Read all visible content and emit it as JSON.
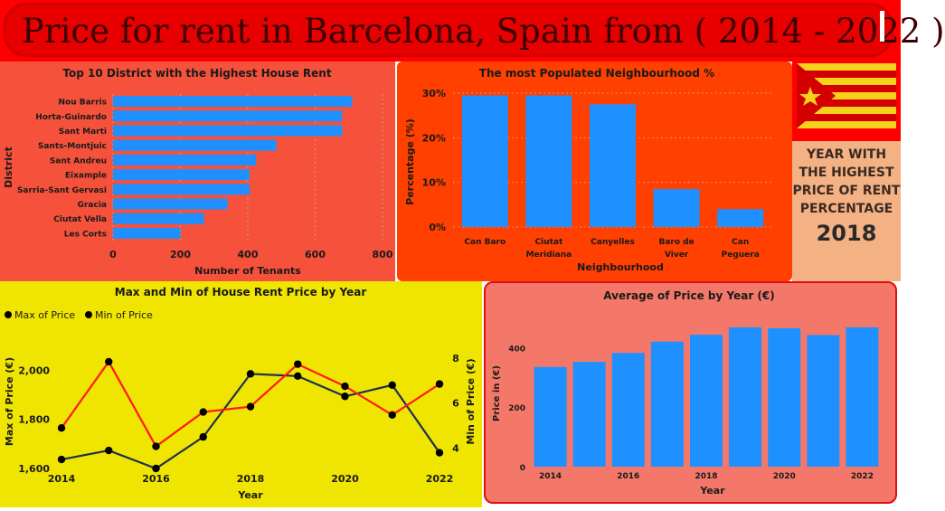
{
  "title": "Price for rent in Barcelona, Spain from ( 2014 - 2022 )",
  "colors": {
    "bar": "#1e90ff",
    "max_line": "#ff1a1a",
    "min_line": "#1f3050",
    "marker": "#000000"
  },
  "kpi_card": {
    "lines": [
      "YEAR WITH",
      "THE HIGHEST",
      "PRICE OF  RENT",
      "PERCENTAGE"
    ],
    "value": "2018"
  },
  "flag_icon": "estelada-flag-icon",
  "chart_data": [
    {
      "id": "district",
      "type": "bar",
      "orientation": "horizontal",
      "title": "Top 10 District with the Highest House Rent",
      "xlabel": "Number of Tenants",
      "ylabel": "District",
      "categories": [
        "Nou Barris",
        "Horta-Guinardo",
        "Sant Marti",
        "Sants-Montjuic",
        "Sant Andreu",
        "Eixample",
        "Sarria-Sant Gervasi",
        "Gracia",
        "Ciutat Vella",
        "Les Corts"
      ],
      "values": [
        710,
        680,
        680,
        485,
        425,
        405,
        405,
        340,
        270,
        200
      ],
      "xlim": [
        0,
        800
      ],
      "xticks": [
        "0",
        "200",
        "400",
        "600",
        "800"
      ],
      "grid": true
    },
    {
      "id": "neighbourhood",
      "type": "bar",
      "title": "The most Populated Neighbourhood %",
      "xlabel": "Neighbourhood",
      "ylabel": "Percentage (%)",
      "categories": [
        [
          "Can Baro"
        ],
        [
          "Ciutat",
          "Meridiana"
        ],
        [
          "Canyelles"
        ],
        [
          "Baro de",
          "Viver"
        ],
        [
          "Can",
          "Peguera"
        ]
      ],
      "values": [
        29.5,
        29.5,
        27.5,
        8.5,
        4
      ],
      "ylim": [
        0,
        30
      ],
      "yticks": [
        "0%",
        "10%",
        "20%",
        "30%"
      ],
      "grid": true
    },
    {
      "id": "maxmin",
      "type": "line",
      "title": "Max and Min of House Rent Price by Year",
      "xlabel": "Year",
      "ylabel": "Max of Price (€)",
      "y2label": "Min of Price (€)",
      "x": [
        2014,
        2015,
        2016,
        2017,
        2018,
        2019,
        2020,
        2021,
        2022
      ],
      "xticks": [
        "2014",
        "2016",
        "2018",
        "2020",
        "2022"
      ],
      "yticks": [
        "1,600",
        "1,800",
        "2,000"
      ],
      "y2ticks": [
        "4",
        "6",
        "8"
      ],
      "ylim": [
        1600,
        2160
      ],
      "y2lim": [
        3.1,
        9.2
      ],
      "legend_position": "top-left",
      "series": [
        {
          "name": "Max of Price",
          "axis": "left",
          "values": [
            1765,
            2035,
            1690,
            1830,
            1852,
            2025,
            1935,
            1818,
            1944
          ]
        },
        {
          "name": "Min of Price",
          "axis": "right",
          "values": [
            3.5,
            3.9,
            3.1,
            4.5,
            7.3,
            7.2,
            6.3,
            6.8,
            3.8
          ]
        }
      ]
    },
    {
      "id": "average",
      "type": "bar",
      "title": "Average of Price by Year (€)",
      "xlabel": "Year",
      "ylabel": "Price in (€)",
      "categories": [
        2014,
        2015,
        2016,
        2017,
        2018,
        2019,
        2020,
        2021,
        2022
      ],
      "values": [
        335,
        352,
        382,
        420,
        443,
        468,
        465,
        442,
        468
      ],
      "xticks": [
        "2014",
        "2016",
        "2018",
        "2020",
        "2022"
      ],
      "yticks": [
        "0",
        "200",
        "400"
      ],
      "ylim": [
        0,
        480
      ]
    }
  ]
}
